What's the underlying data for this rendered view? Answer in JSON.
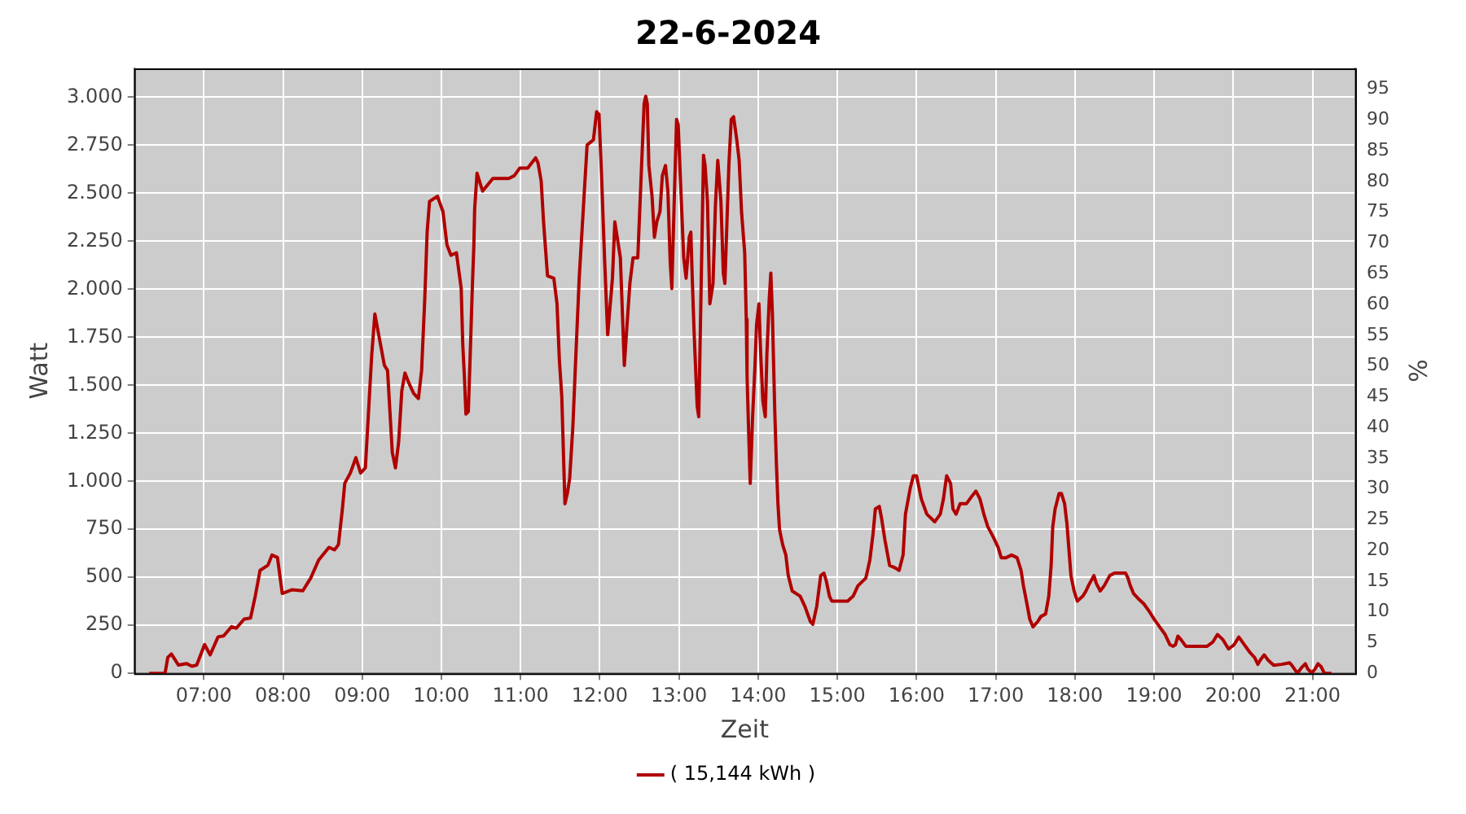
{
  "chart_data": {
    "type": "line",
    "title": "22-6-2024",
    "xlabel": "Zeit",
    "ylabel": "Watt",
    "y2label": "%",
    "xlim": [
      6.12,
      21.54
    ],
    "xticks": [
      {
        "value": 7,
        "label": "07:00"
      },
      {
        "value": 8,
        "label": "08:00"
      },
      {
        "value": 9,
        "label": "09:00"
      },
      {
        "value": 10,
        "label": "10:00"
      },
      {
        "value": 11,
        "label": "11:00"
      },
      {
        "value": 12,
        "label": "12:00"
      },
      {
        "value": 13,
        "label": "13:00"
      },
      {
        "value": 14,
        "label": "14:00"
      },
      {
        "value": 15,
        "label": "15:00"
      },
      {
        "value": 16,
        "label": "16:00"
      },
      {
        "value": 17,
        "label": "17:00"
      },
      {
        "value": 18,
        "label": "18:00"
      },
      {
        "value": 19,
        "label": "19:00"
      },
      {
        "value": 20,
        "label": "20:00"
      },
      {
        "value": 21,
        "label": "21:00"
      }
    ],
    "ylim": [
      0,
      3150
    ],
    "yticks": [
      0,
      250,
      500,
      750,
      {
        "value": 1000,
        "label": "1.000"
      },
      {
        "value": 1250,
        "label": "1.250"
      },
      {
        "value": 1500,
        "label": "1.500"
      },
      {
        "value": 1750,
        "label": "1.750"
      },
      {
        "value": 2000,
        "label": "2.000"
      },
      {
        "value": 2250,
        "label": "2.250"
      },
      {
        "value": 2500,
        "label": "2.500"
      },
      {
        "value": 2750,
        "label": "2.750"
      },
      {
        "value": 3000,
        "label": "3.000"
      }
    ],
    "y2lim": [
      0,
      98.4
    ],
    "y2ticks": [
      0,
      5,
      10,
      15,
      20,
      25,
      30,
      35,
      40,
      45,
      50,
      55,
      60,
      65,
      70,
      75,
      80,
      85,
      90,
      95
    ],
    "grid": true,
    "legend": "bottom",
    "marker": "none",
    "line_style": "solid",
    "series": [
      {
        "name": "( 15,144 kWh )",
        "color": "#b00000",
        "x": [
          6.31,
          6.51,
          6.545,
          6.59,
          6.68,
          6.78,
          6.85,
          6.91,
          7.01,
          7.08,
          7.18,
          7.25,
          7.35,
          7.41,
          7.51,
          7.59,
          7.65,
          7.71,
          7.81,
          7.86,
          7.93,
          7.99,
          8.11,
          8.25,
          8.35,
          8.45,
          8.58,
          8.65,
          8.7,
          8.75,
          8.78,
          8.85,
          8.92,
          8.98,
          9.04,
          9.08,
          9.12,
          9.16,
          9.22,
          9.28,
          9.32,
          9.38,
          9.42,
          9.46,
          9.5,
          9.54,
          9.59,
          9.65,
          9.71,
          9.75,
          9.79,
          9.82,
          9.85,
          9.95,
          10.02,
          10.07,
          10.12,
          10.19,
          10.22,
          10.25,
          10.27,
          10.29,
          10.31,
          10.34,
          10.37,
          10.39,
          10.41,
          10.42,
          10.45,
          10.52,
          10.65,
          10.85,
          10.92,
          10.99,
          11.09,
          11.19,
          11.22,
          11.26,
          11.29,
          11.34,
          11.42,
          11.46,
          11.49,
          11.52,
          11.56,
          11.59,
          11.62,
          11.66,
          11.69,
          11.74,
          11.79,
          11.84,
          11.92,
          11.96,
          11.99,
          12.02,
          12.06,
          12.1,
          12.16,
          12.19,
          12.22,
          12.26,
          12.31,
          12.34,
          12.38,
          12.42,
          12.48,
          12.52,
          12.56,
          12.58,
          12.6,
          12.62,
          12.66,
          12.69,
          12.72,
          12.76,
          12.79,
          12.83,
          12.86,
          12.89,
          12.91,
          12.94,
          12.97,
          12.99,
          13.03,
          13.06,
          13.09,
          13.13,
          13.15,
          13.17,
          13.19,
          13.23,
          13.25,
          13.27,
          13.31,
          13.33,
          13.36,
          13.39,
          13.43,
          13.46,
          13.49,
          13.53,
          13.56,
          13.58,
          13.63,
          13.66,
          13.69,
          13.73,
          13.76,
          13.79,
          13.83,
          13.85,
          13.86,
          13.88,
          13.9,
          13.93,
          13.96,
          13.98,
          14.01,
          14.03,
          14.06,
          14.09,
          14.11,
          14.14,
          14.16,
          14.18,
          14.21,
          14.23,
          14.25,
          14.27,
          14.31,
          14.35,
          14.38,
          14.43,
          14.53,
          14.59,
          14.66,
          14.69,
          14.74,
          14.79,
          14.83,
          14.86,
          14.9,
          14.93,
          15.06,
          15.13,
          15.2,
          15.26,
          15.36,
          15.41,
          15.45,
          15.48,
          15.53,
          15.56,
          15.6,
          15.66,
          15.73,
          15.78,
          15.83,
          15.86,
          15.92,
          15.96,
          16.0,
          16.06,
          16.13,
          16.23,
          16.3,
          16.34,
          16.38,
          16.43,
          16.46,
          16.5,
          16.55,
          16.63,
          16.7,
          16.75,
          16.8,
          16.85,
          16.9,
          16.97,
          17.03,
          17.07,
          17.13,
          17.2,
          17.27,
          17.32,
          17.35,
          17.4,
          17.43,
          17.47,
          17.53,
          17.57,
          17.63,
          17.67,
          17.7,
          17.72,
          17.75,
          17.8,
          17.83,
          17.87,
          17.9,
          17.93,
          17.95,
          17.99,
          18.03,
          18.1,
          18.14,
          18.17,
          18.24,
          18.27,
          18.32,
          18.37,
          18.44,
          18.5,
          18.57,
          18.64,
          18.67,
          18.7,
          18.74,
          18.8,
          18.87,
          18.94,
          19.0,
          19.07,
          19.14,
          19.2,
          19.24,
          19.27,
          19.3,
          19.34,
          19.4,
          19.47,
          19.54,
          19.6,
          19.67,
          19.74,
          19.8,
          19.87,
          19.94,
          20.01,
          20.07,
          20.14,
          20.21,
          20.27,
          20.31,
          20.34,
          20.39,
          20.44,
          20.51,
          20.61,
          20.71,
          20.74,
          20.81,
          20.86,
          20.91,
          20.94,
          20.99,
          21.03,
          21.07,
          21.11,
          21.15,
          21.21,
          21.24
        ],
        "values": [
          0,
          0,
          83,
          101,
          43,
          51,
          37,
          43,
          150,
          96,
          190,
          195,
          243,
          235,
          283,
          288,
          403,
          536,
          563,
          616,
          603,
          416,
          435,
          430,
          496,
          590,
          656,
          643,
          670,
          857,
          990,
          1043,
          1123,
          1043,
          1070,
          1363,
          1657,
          1871,
          1737,
          1604,
          1577,
          1150,
          1070,
          1203,
          1471,
          1564,
          1511,
          1457,
          1431,
          1577,
          1951,
          2298,
          2457,
          2484,
          2404,
          2231,
          2177,
          2190,
          2097,
          2004,
          1710,
          1550,
          1350,
          1363,
          1737,
          2004,
          2231,
          2417,
          2604,
          2511,
          2577,
          2577,
          2591,
          2631,
          2631,
          2684,
          2658,
          2564,
          2351,
          2070,
          2057,
          1924,
          1630,
          1443,
          883,
          936,
          1016,
          1283,
          1577,
          2057,
          2404,
          2751,
          2778,
          2924,
          2911,
          2618,
          2164,
          1763,
          2057,
          2351,
          2271,
          2164,
          1603,
          1790,
          2030,
          2164,
          2164,
          2564,
          2965,
          3005,
          2965,
          2644,
          2484,
          2271,
          2351,
          2404,
          2591,
          2644,
          2511,
          2137,
          2004,
          2457,
          2884,
          2858,
          2457,
          2164,
          2057,
          2271,
          2297,
          2030,
          1790,
          1390,
          1336,
          1790,
          2698,
          2644,
          2457,
          1924,
          2030,
          2431,
          2671,
          2457,
          2084,
          2030,
          2644,
          2884,
          2898,
          2778,
          2671,
          2404,
          2190,
          1844,
          1550,
          1256,
          989,
          1336,
          1603,
          1817,
          1924,
          1683,
          1417,
          1336,
          1657,
          1950,
          2084,
          1870,
          1363,
          1096,
          883,
          749,
          669,
          616,
          509,
          429,
          402,
          349,
          269,
          255,
          349,
          509,
          522,
          482,
          402,
          376,
          376,
          376,
          402,
          456,
          496,
          589,
          723,
          856,
          869,
          803,
          696,
          562,
          549,
          536,
          616,
          829,
          963,
          1029,
          1029,
          909,
          829,
          789,
          829,
          909,
          1029,
          989,
          856,
          829,
          883,
          883,
          923,
          949,
          909,
          829,
          763,
          709,
          656,
          602,
          602,
          616,
          602,
          536,
          456,
          349,
          282,
          242,
          269,
          296,
          309,
          402,
          562,
          763,
          856,
          936,
          936,
          883,
          776,
          616,
          509,
          429,
          376,
          402,
          429,
          456,
          509,
          469,
          429,
          456,
          509,
          522,
          522,
          522,
          496,
          456,
          416,
          389,
          362,
          322,
          282,
          242,
          202,
          149,
          141,
          149,
          194,
          175,
          141,
          141,
          141,
          141,
          141,
          162,
          202,
          175,
          127,
          149,
          189,
          149,
          109,
          82,
          47,
          69,
          96,
          69,
          42,
          47,
          55,
          42,
          0,
          29,
          50,
          23,
          2,
          21,
          50,
          34,
          0,
          0,
          0
        ]
      }
    ]
  }
}
